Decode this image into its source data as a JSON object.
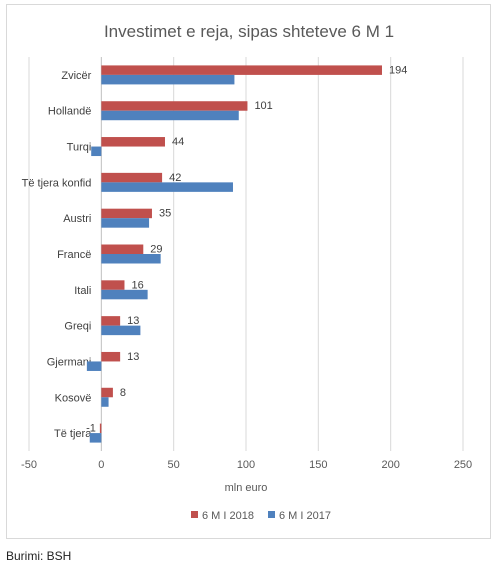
{
  "chart_data": {
    "type": "bar",
    "orientation": "horizontal",
    "title": "Investimet e reja, sipas shteteve 6 M 1",
    "xlabel": "mln euro",
    "ylabel": "",
    "xlim": [
      -50,
      250
    ],
    "xticks": [
      "-50",
      "0",
      "50",
      "100",
      "150",
      "200",
      "250"
    ],
    "grid": true,
    "legend_position": "bottom",
    "categories": [
      "Zvicër",
      "Hollandë",
      "Turqi",
      "Të tjera konfid",
      "Austri",
      "Francë",
      "Itali",
      "Greqi",
      "Gjermani",
      "Kosovë",
      "Të tjera"
    ],
    "series": [
      {
        "name": "6 M I 2018",
        "color": "#c0504d",
        "values": [
          194,
          101,
          44,
          42,
          35,
          29,
          16,
          13,
          13,
          8,
          -1
        ],
        "labels": [
          "194",
          "101",
          "44",
          "42",
          "35",
          "29",
          "16",
          "13",
          "13",
          "8",
          "-1"
        ]
      },
      {
        "name": "6 M I 2017",
        "color": "#4f81bd",
        "values": [
          92,
          95,
          -7,
          91,
          33,
          41,
          32,
          27,
          -10,
          5,
          -8
        ]
      }
    ]
  },
  "footer": {
    "source": "Burimi: BSH"
  }
}
